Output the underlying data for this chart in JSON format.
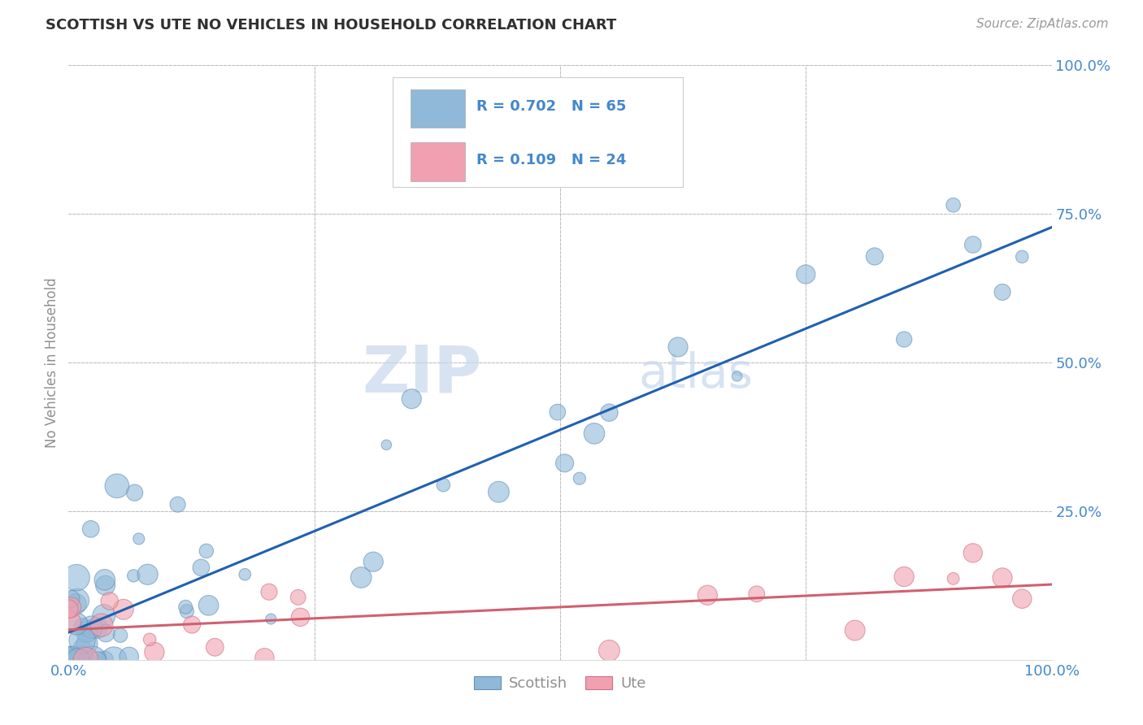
{
  "title": "SCOTTISH VS UTE NO VEHICLES IN HOUSEHOLD CORRELATION CHART",
  "source_text": "Source: ZipAtlas.com",
  "ylabel": "No Vehicles in Household",
  "watermark_zip": "ZIP",
  "watermark_atlas": "atlas",
  "scottish_color": "#90b8d8",
  "scottish_edge_color": "#6090b8",
  "ute_color": "#f0a0b0",
  "ute_edge_color": "#d07080",
  "scottish_line_color": "#2060b0",
  "ute_line_color": "#d06070",
  "background_color": "#ffffff",
  "grid_color": "#bbbbbb",
  "title_color": "#303030",
  "axis_label_color": "#909090",
  "tick_label_color": "#4488cc",
  "legend_border_color": "#cccccc",
  "r_value_scottish": 0.702,
  "n_scottish": 65,
  "r_value_ute": 0.109,
  "n_ute": 24,
  "scottish_seed": 42,
  "ute_seed": 99
}
